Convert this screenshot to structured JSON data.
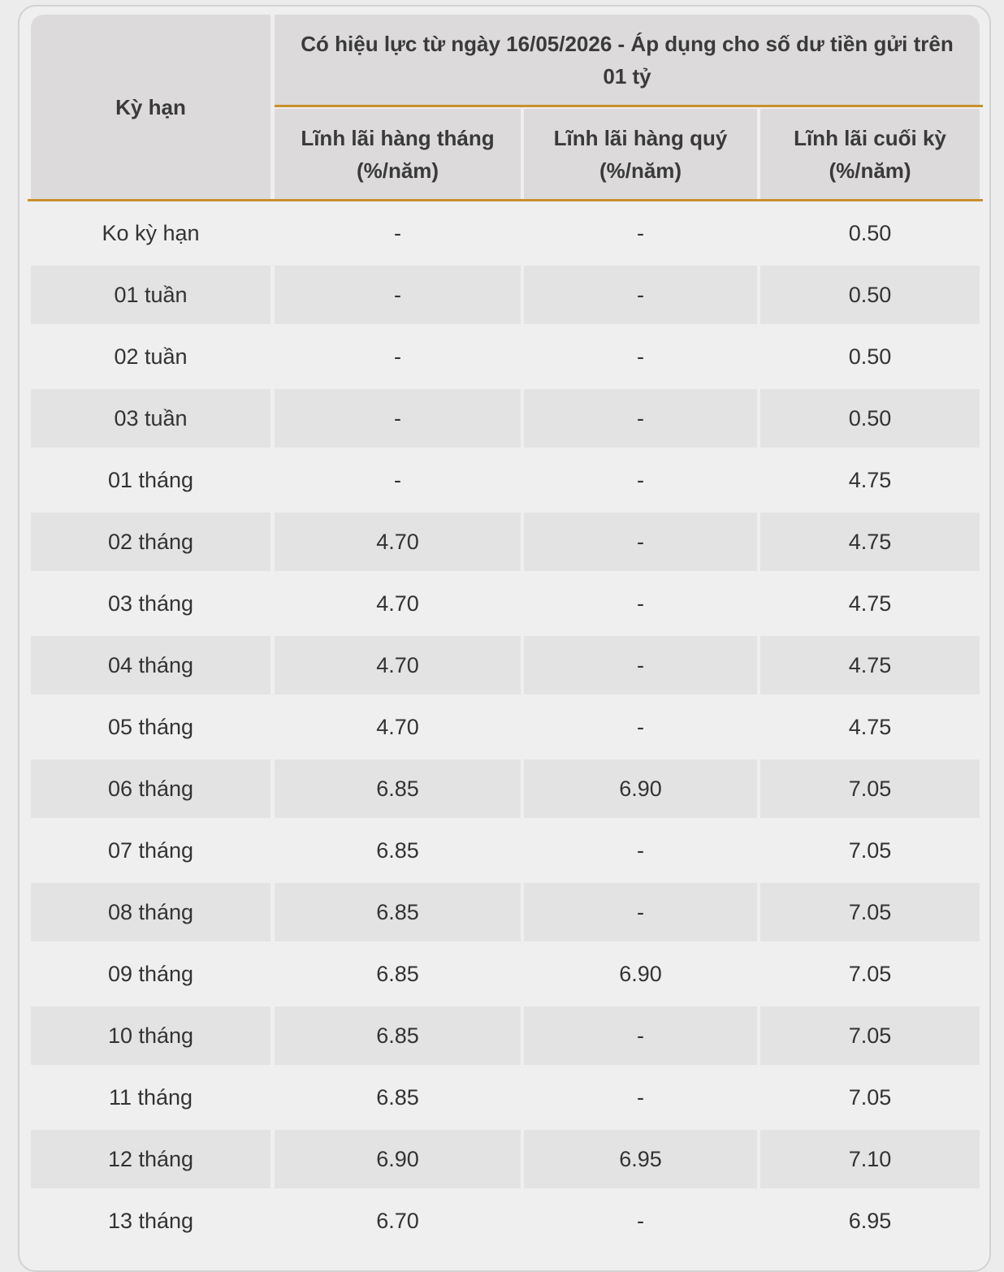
{
  "table": {
    "header": {
      "term": "Kỳ hạn",
      "group": "Có hiệu lực từ ngày 16/05/2026 - Áp dụng cho số dư tiền gửi trên 01 tỷ",
      "monthly": "Lĩnh lãi hàng tháng (%/năm)",
      "quarterly": "Lĩnh lãi hàng quý (%/năm)",
      "end_of_term": "Lĩnh lãi cuối kỳ (%/năm)"
    },
    "rows": [
      {
        "term": "Ko kỳ hạn",
        "monthly": "-",
        "quarterly": "-",
        "end_of_term": "0.50"
      },
      {
        "term": "01 tuần",
        "monthly": "-",
        "quarterly": "-",
        "end_of_term": "0.50"
      },
      {
        "term": "02 tuần",
        "monthly": "-",
        "quarterly": "-",
        "end_of_term": "0.50"
      },
      {
        "term": "03 tuần",
        "monthly": "-",
        "quarterly": "-",
        "end_of_term": "0.50"
      },
      {
        "term": "01 tháng",
        "monthly": "-",
        "quarterly": "-",
        "end_of_term": "4.75"
      },
      {
        "term": "02 tháng",
        "monthly": "4.70",
        "quarterly": "-",
        "end_of_term": "4.75"
      },
      {
        "term": "03 tháng",
        "monthly": "4.70",
        "quarterly": "-",
        "end_of_term": "4.75"
      },
      {
        "term": "04 tháng",
        "monthly": "4.70",
        "quarterly": "-",
        "end_of_term": "4.75"
      },
      {
        "term": "05 tháng",
        "monthly": "4.70",
        "quarterly": "-",
        "end_of_term": "4.75"
      },
      {
        "term": "06 tháng",
        "monthly": "6.85",
        "quarterly": "6.90",
        "end_of_term": "7.05"
      },
      {
        "term": "07 tháng",
        "monthly": "6.85",
        "quarterly": "-",
        "end_of_term": "7.05"
      },
      {
        "term": "08 tháng",
        "monthly": "6.85",
        "quarterly": "-",
        "end_of_term": "7.05"
      },
      {
        "term": "09 tháng",
        "monthly": "6.85",
        "quarterly": "6.90",
        "end_of_term": "7.05"
      },
      {
        "term": "10 tháng",
        "monthly": "6.85",
        "quarterly": "-",
        "end_of_term": "7.05"
      },
      {
        "term": "11 tháng",
        "monthly": "6.85",
        "quarterly": "-",
        "end_of_term": "7.05"
      },
      {
        "term": "12 tháng",
        "monthly": "6.90",
        "quarterly": "6.95",
        "end_of_term": "7.10"
      },
      {
        "term": "13 tháng",
        "monthly": "6.70",
        "quarterly": "-",
        "end_of_term": "6.95"
      }
    ]
  },
  "colors": {
    "header_bg": "#dcdadb",
    "accent_line": "#c8912c",
    "row_shade": "#e3e3e3",
    "page_bg": "#ececec"
  }
}
